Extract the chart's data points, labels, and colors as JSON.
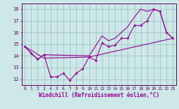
{
  "bg_color": "#cce8e8",
  "line_color": "#990099",
  "grid_color": "#99bbbb",
  "xlim_min": -0.5,
  "xlim_max": 23.5,
  "ylim_min": 11.5,
  "ylim_max": 18.5,
  "yticks": [
    12,
    13,
    14,
    15,
    16,
    17,
    18
  ],
  "xticks": [
    0,
    1,
    2,
    3,
    4,
    5,
    6,
    7,
    8,
    9,
    10,
    11,
    12,
    13,
    14,
    15,
    16,
    17,
    18,
    19,
    20,
    21,
    22,
    23
  ],
  "xlabel": "Windchill (Refroidissement éolien,°C)",
  "line1_x": [
    0,
    1,
    2,
    3,
    4,
    5,
    6,
    7,
    8,
    9,
    10,
    11,
    12,
    13,
    14,
    15,
    16,
    17,
    18,
    19,
    20,
    21,
    22,
    23
  ],
  "line1_y": [
    14.8,
    14.2,
    13.7,
    14.1,
    12.2,
    12.2,
    12.5,
    11.9,
    12.5,
    12.9,
    13.9,
    13.6,
    15.1,
    14.8,
    14.9,
    15.5,
    15.5,
    16.6,
    16.6,
    17.0,
    18.0,
    17.8,
    16.0,
    15.5
  ],
  "line2_x": [
    0,
    2,
    3,
    10,
    12,
    13,
    14,
    15,
    16,
    17,
    18,
    19,
    20,
    21,
    22,
    23
  ],
  "line2_y": [
    14.8,
    13.7,
    14.1,
    14.0,
    15.7,
    15.3,
    15.5,
    16.0,
    16.5,
    17.3,
    18.0,
    17.8,
    18.0,
    17.8,
    16.0,
    15.5
  ],
  "line3_x": [
    0,
    3,
    10,
    23
  ],
  "line3_y": [
    14.8,
    13.8,
    13.9,
    15.5
  ]
}
